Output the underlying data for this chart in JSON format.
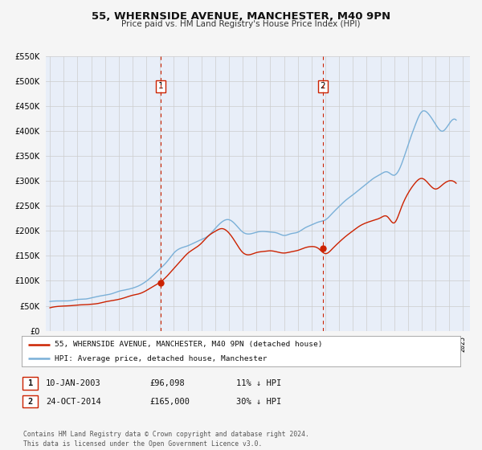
{
  "title": "55, WHERNSIDE AVENUE, MANCHESTER, M40 9PN",
  "subtitle": "Price paid vs. HM Land Registry's House Price Index (HPI)",
  "bg_color": "#f5f5f5",
  "plot_bg_color": "#e8eef8",
  "grid_color": "#cccccc",
  "hpi_color": "#7ab0d8",
  "price_color": "#cc2200",
  "ylim": [
    0,
    550000
  ],
  "yticks": [
    0,
    50000,
    100000,
    150000,
    200000,
    250000,
    300000,
    350000,
    400000,
    450000,
    500000,
    550000
  ],
  "ytick_labels": [
    "£0",
    "£50K",
    "£100K",
    "£150K",
    "£200K",
    "£250K",
    "£300K",
    "£350K",
    "£400K",
    "£450K",
    "£500K",
    "£550K"
  ],
  "xlim_start": 1994.7,
  "xlim_end": 2025.5,
  "event1_x": 2003.03,
  "event1_y": 96098,
  "event1_label": "1",
  "event2_x": 2014.81,
  "event2_y": 165000,
  "event2_label": "2",
  "legend_price_label": "55, WHERNSIDE AVENUE, MANCHESTER, M40 9PN (detached house)",
  "legend_hpi_label": "HPI: Average price, detached house, Manchester",
  "table_row1": [
    "1",
    "10-JAN-2003",
    "£96,098",
    "11% ↓ HPI"
  ],
  "table_row2": [
    "2",
    "24-OCT-2014",
    "£165,000",
    "30% ↓ HPI"
  ],
  "footer": "Contains HM Land Registry data © Crown copyright and database right 2024.\nThis data is licensed under the Open Government Licence v3.0.",
  "hpi_data_x": [
    1995.0,
    1995.5,
    1996.0,
    1996.5,
    1997.0,
    1997.5,
    1998.0,
    1998.5,
    1999.0,
    1999.5,
    2000.0,
    2000.5,
    2001.0,
    2001.5,
    2002.0,
    2002.5,
    2003.0,
    2003.5,
    2004.0,
    2004.5,
    2005.0,
    2005.5,
    2006.0,
    2006.5,
    2007.0,
    2007.5,
    2008.0,
    2008.5,
    2009.0,
    2009.5,
    2010.0,
    2010.5,
    2011.0,
    2011.5,
    2012.0,
    2012.5,
    2013.0,
    2013.5,
    2014.0,
    2014.5,
    2015.0,
    2015.5,
    2016.0,
    2016.5,
    2017.0,
    2017.5,
    2018.0,
    2018.5,
    2019.0,
    2019.5,
    2020.0,
    2020.5,
    2021.0,
    2021.5,
    2022.0,
    2022.5,
    2023.0,
    2023.5,
    2024.0,
    2024.5
  ],
  "hpi_data_y": [
    57000,
    58000,
    59000,
    61000,
    63000,
    65000,
    67000,
    69000,
    72000,
    75000,
    78000,
    82000,
    86000,
    92000,
    100000,
    112000,
    125000,
    140000,
    155000,
    165000,
    170000,
    175000,
    180000,
    190000,
    205000,
    220000,
    225000,
    215000,
    200000,
    195000,
    198000,
    200000,
    200000,
    198000,
    195000,
    196000,
    198000,
    205000,
    210000,
    215000,
    220000,
    235000,
    250000,
    265000,
    275000,
    285000,
    295000,
    305000,
    310000,
    315000,
    310000,
    330000,
    370000,
    410000,
    440000,
    435000,
    415000,
    400000,
    415000,
    420000
  ],
  "price_data_x": [
    1995.0,
    1995.5,
    1996.0,
    1996.5,
    1997.0,
    1997.5,
    1998.0,
    1998.5,
    1999.0,
    1999.5,
    2000.0,
    2000.5,
    2001.0,
    2001.5,
    2002.0,
    2002.5,
    2003.0,
    2003.5,
    2004.0,
    2004.5,
    2005.0,
    2005.5,
    2006.0,
    2006.5,
    2007.0,
    2007.5,
    2008.0,
    2008.5,
    2009.0,
    2009.5,
    2010.0,
    2010.5,
    2011.0,
    2011.5,
    2012.0,
    2012.5,
    2013.0,
    2013.5,
    2014.0,
    2014.5,
    2015.0,
    2015.5,
    2016.0,
    2016.5,
    2017.0,
    2017.5,
    2018.0,
    2018.5,
    2019.0,
    2019.5,
    2020.0,
    2020.5,
    2021.0,
    2021.5,
    2022.0,
    2022.5,
    2023.0,
    2023.5,
    2024.0,
    2024.5
  ],
  "price_data_y": [
    48000,
    49000,
    50000,
    51000,
    52000,
    53000,
    55000,
    57000,
    59000,
    61000,
    63000,
    66000,
    69000,
    73000,
    79000,
    87000,
    96098,
    110000,
    125000,
    140000,
    155000,
    165000,
    175000,
    190000,
    200000,
    205000,
    195000,
    175000,
    155000,
    150000,
    155000,
    158000,
    160000,
    158000,
    155000,
    157000,
    160000,
    165000,
    168000,
    165000,
    155000,
    165000,
    178000,
    190000,
    200000,
    210000,
    215000,
    220000,
    225000,
    228000,
    215000,
    245000,
    275000,
    295000,
    305000,
    295000,
    285000,
    292000,
    300000,
    295000
  ]
}
